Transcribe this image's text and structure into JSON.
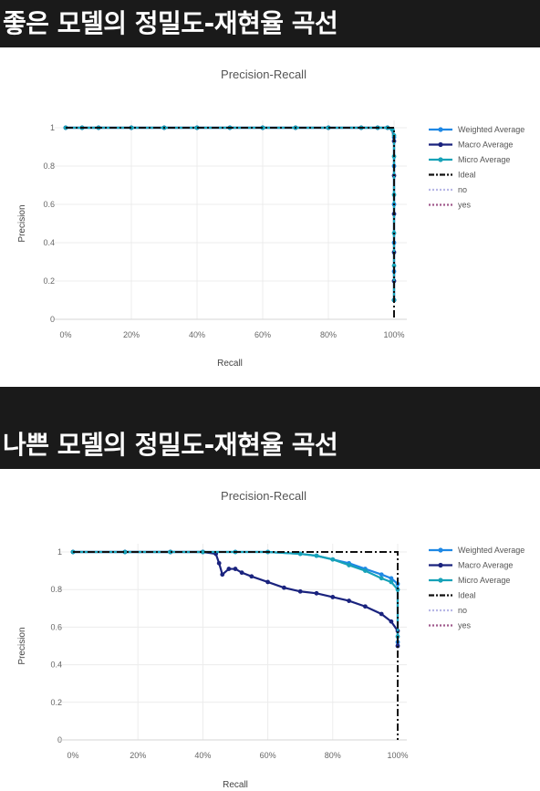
{
  "sections": [
    {
      "heading": "좋은 모델의 정밀도-재현율 곡선"
    },
    {
      "heading": "나쁜 모델의 정밀도-재현율 곡선"
    }
  ],
  "colors": {
    "weighted": "#1e88e5",
    "macro": "#1a237e",
    "micro": "#17a2b8",
    "ideal": "#111111",
    "no": "#b7b7e6",
    "yes": "#a05a8c",
    "grid": "#ececec"
  },
  "chart_data": [
    {
      "type": "line",
      "title": "Precision-Recall",
      "xlabel": "Recall",
      "ylabel": "Precision",
      "xlim": [
        0,
        1
      ],
      "ylim": [
        0,
        1
      ],
      "x_ticks": [
        "0%",
        "20%",
        "40%",
        "60%",
        "80%",
        "100%"
      ],
      "y_ticks": [
        "0",
        "0.2",
        "0.4",
        "0.6",
        "0.8",
        "1"
      ],
      "legend_position": "right",
      "legend": [
        "Weighted Average",
        "Macro Average",
        "Micro Average",
        "Ideal",
        "no",
        "yes"
      ],
      "series": [
        {
          "name": "Weighted Average",
          "x": [
            0,
            0.05,
            0.1,
            0.2,
            0.3,
            0.4,
            0.5,
            0.6,
            0.7,
            0.8,
            0.9,
            0.95,
            0.98,
            0.995,
            1,
            1,
            1,
            1,
            1,
            1
          ],
          "y": [
            1,
            1,
            1,
            1,
            1,
            1,
            1,
            1,
            1,
            1,
            1,
            1,
            1,
            0.99,
            0.95,
            0.8,
            0.6,
            0.4,
            0.25,
            0.1
          ]
        },
        {
          "name": "Macro Average",
          "x": [
            0,
            0.05,
            0.1,
            0.2,
            0.3,
            0.4,
            0.5,
            0.6,
            0.7,
            0.8,
            0.9,
            0.95,
            0.98,
            0.995,
            1,
            1,
            1,
            1,
            1,
            1
          ],
          "y": [
            1,
            1,
            1,
            1,
            1,
            1,
            1,
            1,
            1,
            1,
            1,
            1,
            1,
            0.99,
            0.93,
            0.75,
            0.55,
            0.35,
            0.2,
            0.1
          ]
        },
        {
          "name": "Micro Average",
          "x": [
            0,
            0.05,
            0.1,
            0.2,
            0.3,
            0.4,
            0.5,
            0.6,
            0.7,
            0.8,
            0.9,
            0.95,
            0.98,
            0.995,
            1,
            1,
            1,
            1,
            1,
            1
          ],
          "y": [
            1,
            1,
            1,
            1,
            1,
            1,
            1,
            1,
            1,
            1,
            1,
            1,
            1,
            0.99,
            0.96,
            0.85,
            0.65,
            0.45,
            0.28,
            0.1
          ]
        },
        {
          "name": "Ideal",
          "x": [
            0,
            1,
            1
          ],
          "y": [
            1,
            1,
            0
          ]
        }
      ]
    },
    {
      "type": "line",
      "title": "Precision-Recall",
      "xlabel": "Recall",
      "ylabel": "Precision",
      "xlim": [
        0,
        1
      ],
      "ylim": [
        0,
        1
      ],
      "x_ticks": [
        "0%",
        "20%",
        "40%",
        "60%",
        "80%",
        "100%"
      ],
      "y_ticks": [
        "0",
        "0.2",
        "0.4",
        "0.6",
        "0.8",
        "1"
      ],
      "legend_position": "right",
      "legend": [
        "Weighted Average",
        "Macro Average",
        "Micro Average",
        "Ideal",
        "no",
        "yes"
      ],
      "series": [
        {
          "name": "Weighted Average",
          "x": [
            0,
            0.16,
            0.3,
            0.4,
            0.5,
            0.6,
            0.7,
            0.75,
            0.8,
            0.85,
            0.9,
            0.95,
            0.98,
            1,
            1
          ],
          "y": [
            1,
            1,
            1,
            1,
            1,
            1,
            0.99,
            0.98,
            0.96,
            0.94,
            0.91,
            0.88,
            0.86,
            0.83,
            0.52
          ]
        },
        {
          "name": "Macro Average",
          "x": [
            0,
            0.16,
            0.3,
            0.4,
            0.44,
            0.45,
            0.46,
            0.48,
            0.5,
            0.52,
            0.55,
            0.6,
            0.65,
            0.7,
            0.75,
            0.8,
            0.85,
            0.9,
            0.95,
            0.98,
            1,
            1
          ],
          "y": [
            1,
            1,
            1,
            1,
            0.99,
            0.94,
            0.88,
            0.91,
            0.91,
            0.89,
            0.87,
            0.84,
            0.81,
            0.79,
            0.78,
            0.76,
            0.74,
            0.71,
            0.67,
            0.63,
            0.58,
            0.5
          ]
        },
        {
          "name": "Micro Average",
          "x": [
            0,
            0.16,
            0.3,
            0.4,
            0.5,
            0.6,
            0.7,
            0.75,
            0.8,
            0.85,
            0.9,
            0.95,
            0.98,
            1,
            1
          ],
          "y": [
            1,
            1,
            1,
            1,
            1,
            1,
            0.99,
            0.98,
            0.96,
            0.93,
            0.9,
            0.86,
            0.84,
            0.8,
            0.55
          ]
        },
        {
          "name": "Ideal",
          "x": [
            0,
            1,
            1
          ],
          "y": [
            1,
            1,
            0
          ]
        }
      ]
    }
  ]
}
